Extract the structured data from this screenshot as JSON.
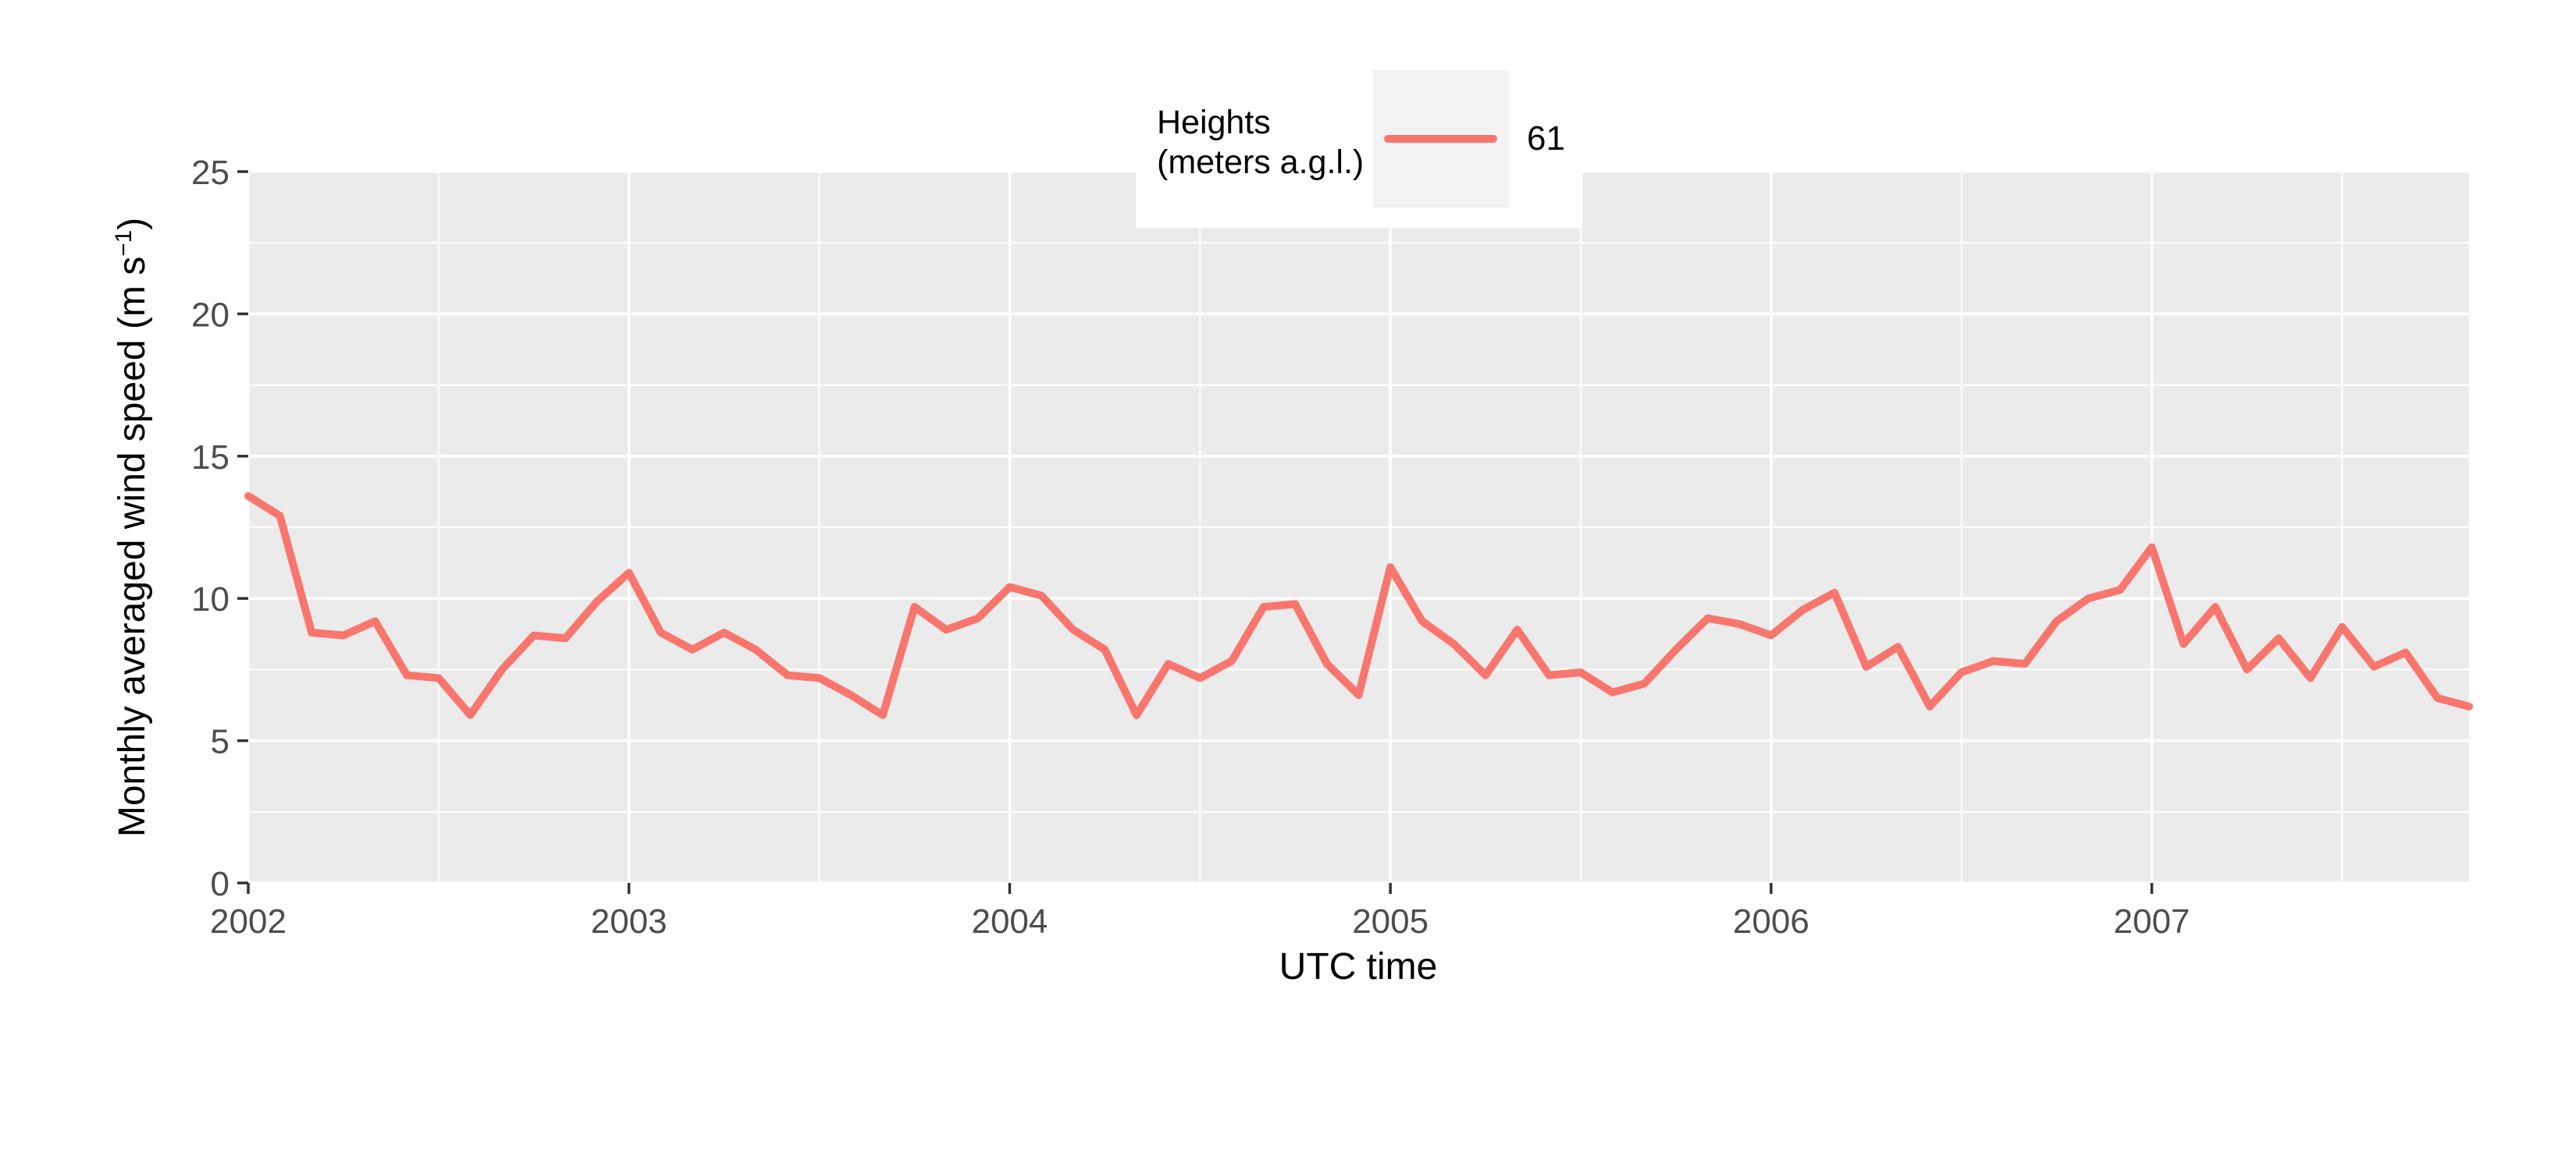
{
  "chart_data": {
    "type": "line",
    "title": "",
    "xlabel": "UTC time",
    "ylabel": "Monthly averaged wind speed (m s⁻¹)",
    "ylabel_prefix": "Monthly averaged wind speed (m s",
    "ylabel_sup": "−1",
    "ylabel_suffix": ")",
    "x_unit": "month",
    "x_range": [
      "2002-01",
      "2007-11"
    ],
    "x_tick_labels": [
      "2002",
      "2003",
      "2004",
      "2005",
      "2006",
      "2007"
    ],
    "x_major_idx": [
      0,
      12,
      24,
      36,
      48,
      60
    ],
    "x_minor_idx": [
      6,
      18,
      30,
      42,
      54,
      66
    ],
    "ylim": [
      0,
      25
    ],
    "y_major": [
      0,
      5,
      10,
      15,
      20,
      25
    ],
    "y_minor": [
      2.5,
      7.5,
      12.5,
      17.5,
      22.5
    ],
    "y_tick_labels": [
      "0",
      "5",
      "10",
      "15",
      "20",
      "25"
    ],
    "grid": true,
    "legend": {
      "title_line1": "Heights",
      "title_line2": "(meters a.g.l.)",
      "position": "top-center-inside",
      "entries": [
        {
          "label": "61",
          "color": "#F8766D"
        }
      ]
    },
    "series": [
      {
        "name": "61",
        "color": "#F8766D",
        "values": [
          13.6,
          12.9,
          8.8,
          8.7,
          9.2,
          7.3,
          7.2,
          5.9,
          7.5,
          8.7,
          8.6,
          9.9,
          10.9,
          8.8,
          8.2,
          8.8,
          8.2,
          7.3,
          7.2,
          6.6,
          5.9,
          9.7,
          8.9,
          9.3,
          10.4,
          10.1,
          8.9,
          8.2,
          5.9,
          7.7,
          7.2,
          7.8,
          9.7,
          9.8,
          7.7,
          6.6,
          11.1,
          9.2,
          8.4,
          7.3,
          8.9,
          7.3,
          7.4,
          6.7,
          7.0,
          8.2,
          9.3,
          9.1,
          8.7,
          9.6,
          10.2,
          7.6,
          8.3,
          6.2,
          7.4,
          7.8,
          7.7,
          9.2,
          10.0,
          10.3,
          11.8,
          8.4,
          9.7,
          7.5,
          8.6,
          7.2,
          9.0,
          7.6,
          8.1,
          6.5,
          6.2
        ]
      }
    ]
  },
  "style": {
    "background": "#FFFFFF",
    "panel_bg": "#EBEBEB",
    "grid_color": "#FFFFFF",
    "accent": "#F8766D",
    "tick_label_color": "#4D4D4D",
    "tick_mark_color": "#333333",
    "axis_title_color": "#000000",
    "legend_key_bg": "#F2F2F2"
  }
}
